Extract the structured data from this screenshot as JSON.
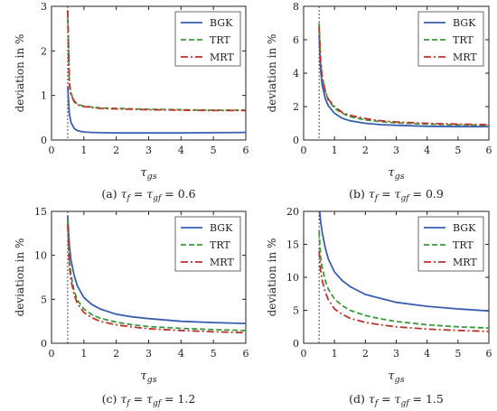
{
  "colors": {
    "BGK": "#3a5fb0",
    "TRT": "#3a9a3a",
    "MRT": "#c0312b",
    "axis": "#222222",
    "vline": "#222222"
  },
  "chart_data": [
    {
      "type": "line",
      "caption": {
        "label": "(a)",
        "tau_value": "0.6"
      },
      "xlabel": "τgs",
      "ylabel": "deviation in %",
      "xlim": [
        0,
        6
      ],
      "ylim": [
        0,
        3
      ],
      "xticks": [
        "0",
        "1",
        "2",
        "3",
        "4",
        "5",
        "6"
      ],
      "yticks": [
        "0",
        "1",
        "2",
        "3"
      ],
      "legend": "top-right",
      "vline_x": 0.5,
      "x": [
        0.5,
        0.55,
        0.6,
        0.7,
        0.8,
        1.0,
        1.25,
        1.5,
        2,
        2.5,
        3,
        4,
        5,
        6
      ],
      "series": [
        {
          "name": "BGK",
          "values": [
            1.2,
            0.6,
            0.4,
            0.26,
            0.21,
            0.18,
            0.17,
            0.165,
            0.16,
            0.16,
            0.16,
            0.16,
            0.165,
            0.17
          ]
        },
        {
          "name": "TRT",
          "values": [
            2.9,
            1.3,
            1.05,
            0.88,
            0.8,
            0.76,
            0.74,
            0.72,
            0.71,
            0.7,
            0.69,
            0.68,
            0.67,
            0.67
          ]
        },
        {
          "name": "MRT",
          "values": [
            2.9,
            1.25,
            1.02,
            0.86,
            0.79,
            0.75,
            0.73,
            0.71,
            0.7,
            0.69,
            0.68,
            0.67,
            0.66,
            0.66
          ]
        }
      ]
    },
    {
      "type": "line",
      "caption": {
        "label": "(b)",
        "tau_value": "0.9"
      },
      "xlabel": "τgs",
      "ylabel": "deviation in %",
      "xlim": [
        0,
        6
      ],
      "ylim": [
        0,
        8
      ],
      "xticks": [
        "0",
        "1",
        "2",
        "3",
        "4",
        "5",
        "6"
      ],
      "yticks": [
        "0",
        "2",
        "4",
        "6",
        "8"
      ],
      "legend": "top-right",
      "vline_x": 0.5,
      "x": [
        0.5,
        0.55,
        0.6,
        0.7,
        0.8,
        1.0,
        1.25,
        1.5,
        2,
        2.5,
        3,
        4,
        5,
        6
      ],
      "series": [
        {
          "name": "BGK",
          "values": [
            6.3,
            4.2,
            3.3,
            2.5,
            2.05,
            1.6,
            1.3,
            1.15,
            1.0,
            0.92,
            0.88,
            0.82,
            0.8,
            0.8
          ]
        },
        {
          "name": "TRT",
          "values": [
            7.0,
            4.8,
            3.8,
            2.9,
            2.4,
            1.9,
            1.6,
            1.4,
            1.2,
            1.1,
            1.02,
            0.95,
            0.9,
            0.88
          ]
        },
        {
          "name": "MRT",
          "values": [
            6.8,
            4.7,
            3.8,
            2.95,
            2.45,
            2.0,
            1.65,
            1.48,
            1.28,
            1.15,
            1.08,
            1.0,
            0.95,
            0.92
          ]
        }
      ]
    },
    {
      "type": "line",
      "caption": {
        "label": "(c)",
        "tau_value": "1.2"
      },
      "xlabel": "τgs",
      "ylabel": "deviation in %",
      "xlim": [
        0,
        6
      ],
      "ylim": [
        0,
        15
      ],
      "xticks": [
        "0",
        "1",
        "2",
        "3",
        "4",
        "5",
        "6"
      ],
      "yticks": [
        "0",
        "5",
        "10",
        "15"
      ],
      "legend": "top-right",
      "vline_x": 0.5,
      "x": [
        0.5,
        0.55,
        0.6,
        0.7,
        0.8,
        1.0,
        1.25,
        1.5,
        2,
        2.5,
        3,
        4,
        5,
        6
      ],
      "series": [
        {
          "name": "BGK",
          "values": [
            14.5,
            11.2,
            9.5,
            7.7,
            6.5,
            5.2,
            4.4,
            3.9,
            3.3,
            3.0,
            2.8,
            2.5,
            2.35,
            2.25
          ]
        },
        {
          "name": "TRT",
          "values": [
            14.0,
            9.5,
            7.8,
            5.9,
            4.9,
            3.9,
            3.25,
            2.85,
            2.4,
            2.1,
            1.9,
            1.7,
            1.55,
            1.45
          ]
        },
        {
          "name": "MRT",
          "values": [
            13.5,
            9.0,
            7.2,
            5.5,
            4.5,
            3.5,
            2.9,
            2.5,
            2.1,
            1.85,
            1.65,
            1.45,
            1.3,
            1.2
          ]
        }
      ]
    },
    {
      "type": "line",
      "caption": {
        "label": "(d)",
        "tau_value": "1.5"
      },
      "xlabel": "τgs",
      "ylabel": "deviation in %",
      "xlim": [
        0,
        6
      ],
      "ylim": [
        0,
        20
      ],
      "xticks": [
        "0",
        "1",
        "2",
        "3",
        "4",
        "5",
        "6"
      ],
      "yticks": [
        "0",
        "5",
        "10",
        "15",
        "20"
      ],
      "legend": "top-right",
      "vline_x": 0.5,
      "x": [
        0.5,
        0.55,
        0.6,
        0.7,
        0.8,
        1.0,
        1.25,
        1.5,
        2,
        2.5,
        3,
        4,
        5,
        6
      ],
      "series": [
        {
          "name": "BGK",
          "values": [
            21.0,
            18.5,
            16.8,
            14.5,
            12.8,
            10.8,
            9.5,
            8.6,
            7.4,
            6.8,
            6.2,
            5.6,
            5.2,
            4.9
          ]
        },
        {
          "name": "TRT",
          "values": [
            17.0,
            13.0,
            11.5,
            9.5,
            8.2,
            6.7,
            5.7,
            5.0,
            4.2,
            3.7,
            3.3,
            2.8,
            2.5,
            2.3
          ]
        },
        {
          "name": "MRT",
          "values": [
            14.0,
            11.0,
            9.5,
            7.8,
            6.6,
            5.2,
            4.4,
            3.8,
            3.15,
            2.8,
            2.5,
            2.15,
            1.95,
            1.8
          ]
        }
      ]
    }
  ]
}
